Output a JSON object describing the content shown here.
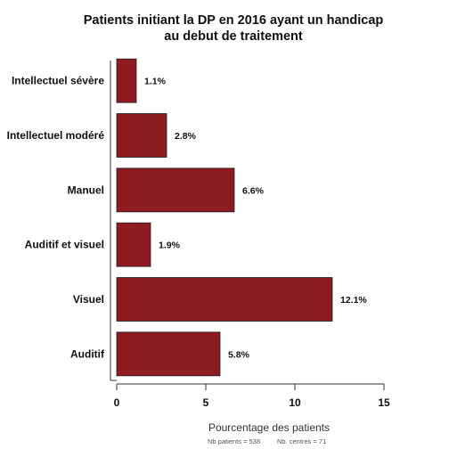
{
  "chart_data": {
    "type": "bar",
    "orientation": "horizontal",
    "title": [
      "Patients initiant la DP en 2016 ayant un handicap",
      "au debut de traitement"
    ],
    "categories": [
      "Intellectuel sévère",
      "Intellectuel modéré",
      "Manuel",
      "Auditif et visuel",
      "Visuel",
      "Auditif"
    ],
    "values": [
      1.1,
      2.8,
      6.6,
      1.9,
      12.1,
      5.8
    ],
    "value_labels": [
      "1.1%",
      "2.8%",
      "6.6%",
      "1.9%",
      "12.1%",
      "5.8%"
    ],
    "xlabel": "Pourcentage des patients",
    "ylabel": "",
    "xlim": [
      0,
      15
    ],
    "xticks": [
      0,
      5,
      10,
      15
    ],
    "grid": false,
    "bar_color": "#8e1b22"
  },
  "footnote": {
    "patients": "Nb patients =  538",
    "centres": "Nb. centres =  71"
  }
}
